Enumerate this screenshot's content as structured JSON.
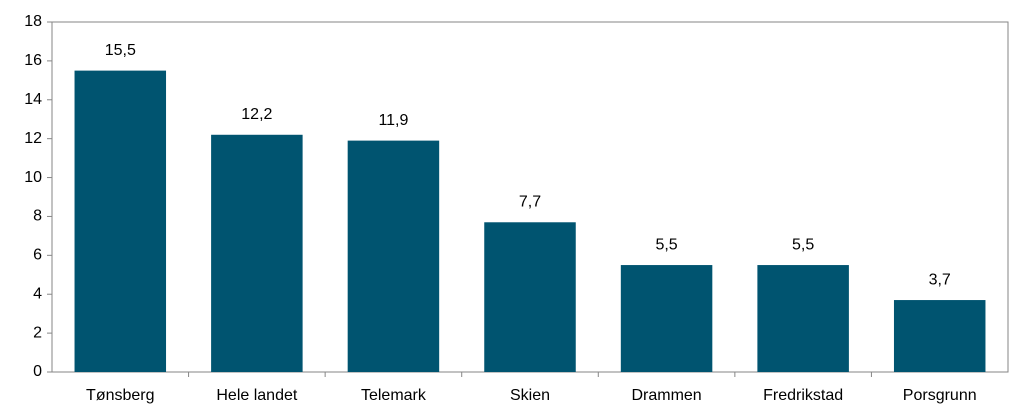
{
  "chart_data": {
    "type": "bar",
    "categories": [
      "Tønsberg",
      "Hele landet",
      "Telemark",
      "Skien",
      "Drammen",
      "Fredrikstad",
      "Porsgrunn"
    ],
    "values": [
      15.5,
      12.2,
      11.9,
      7.7,
      5.5,
      5.5,
      3.7
    ],
    "value_labels": [
      "15,5",
      "12,2",
      "11,9",
      "7,7",
      "5,5",
      "5,5",
      "3,7"
    ],
    "color": "#005470",
    "ylim": [
      0,
      18
    ],
    "yticks": [
      0,
      2,
      4,
      6,
      8,
      10,
      12,
      14,
      16,
      18
    ],
    "grid": false
  }
}
